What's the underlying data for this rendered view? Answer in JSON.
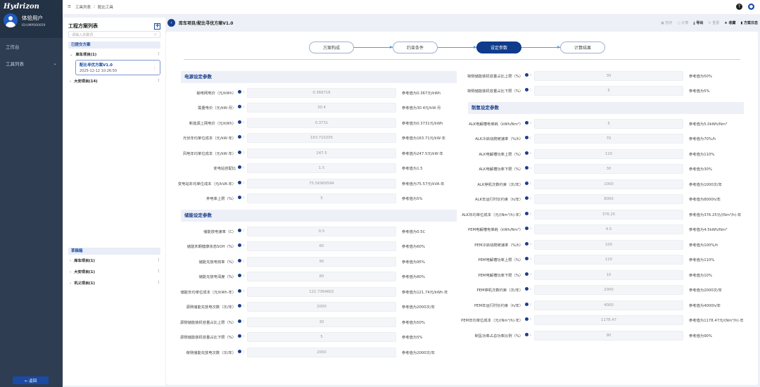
{
  "app": {
    "logo": "Hydrizon",
    "user_name": "体验用户",
    "user_id": "ID:UMP000059",
    "nav": [
      {
        "label": "工作台"
      },
      {
        "label": "工具列表"
      }
    ],
    "back_label": "← 返回"
  },
  "breadcrumb": [
    "工具列表",
    "配比工具"
  ],
  "left_panel": {
    "title": "工程方案列表",
    "search_placeholder": "请输入关键词",
    "submitted_label": "已提交方案",
    "submitted": [
      {
        "label": "库车项目(1)",
        "child": {
          "name": "配比寻优方案V1.0",
          "date": "2025-12-12 10:26:50"
        }
      },
      {
        "label": "大安项目(14)"
      }
    ],
    "drafts_label": "草稿箱",
    "drafts": [
      {
        "label": "库车项目(1)"
      },
      {
        "label": "大安项目(1)"
      },
      {
        "label": "巩义项目(1)"
      }
    ]
  },
  "main": {
    "title": "库车项目/配比寻优方案V1.0",
    "actions": [
      {
        "label": "暂存",
        "icon": "save-icon",
        "enabled": false
      },
      {
        "label": "计算",
        "icon": "calc-icon",
        "enabled": false
      },
      {
        "label": "导出",
        "icon": "export-icon",
        "enabled": true
      },
      {
        "label": "重置",
        "icon": "reset-icon",
        "enabled": false
      },
      {
        "label": "收藏",
        "icon": "star-icon",
        "enabled": true
      },
      {
        "label": "方案日志",
        "icon": "log-icon",
        "enabled": true
      }
    ],
    "steps": [
      {
        "label": "方案构成"
      },
      {
        "label": "约束条件"
      },
      {
        "label": "设定参数",
        "active": true
      },
      {
        "label": "计算结果"
      }
    ]
  },
  "left_column": [
    {
      "type": "header",
      "title": "电源设定参数"
    },
    {
      "label": "输电网电价（元/kWh）",
      "value": "0.366716",
      "ref": "参考值为0.367元/kWh"
    },
    {
      "label": "需量电价（元/kW·月）",
      "value": "30.4",
      "ref": "参考值为30.4元/kW·月"
    },
    {
      "label": "新能源上网电价（元/kWh）",
      "value": "0.3731",
      "ref": "参考值为0.3731元/kWh"
    },
    {
      "label": "光伏年均单位成本（元/kW·年）",
      "value": "163.710205",
      "ref": "参考值为163.71元/kW·年"
    },
    {
      "label": "风电年均单位成本（元/kW·年）",
      "value": "247.5",
      "ref": "参考值为247.5元/kW·年"
    },
    {
      "label": "变电站容配比",
      "value": "1.5",
      "ref": "参考值为1.5"
    },
    {
      "label": "变电站年均单位成本（元/kVA·年）",
      "value": "75.56969594",
      "ref": "参考值为75.57元/kVA·年"
    },
    {
      "label": "弃电率上限（%）",
      "value": "5",
      "ref": "参考值为5%"
    },
    {
      "type": "header",
      "title": "储能设定参数"
    },
    {
      "label": "储能放电速率（C）",
      "value": "0.5",
      "ref": "参考值为0.5C"
    },
    {
      "label": "储能末期健康状态SOH（%）",
      "value": "60",
      "ref": "参考值为60%"
    },
    {
      "label": "储能充放电效率（%）",
      "value": "95",
      "ref": "参考值为95%"
    },
    {
      "label": "储能充放电深度（%）",
      "value": "80",
      "ref": "参考值为80%"
    },
    {
      "label": "储能年均单位成本（元/kWh·年）",
      "value": "121.7364602",
      "ref": "参考值为121.74元/kWh·年"
    },
    {
      "label": "源侧储能充放电次数（次/年）",
      "value": "2000",
      "ref": "参考值为2000次/年"
    },
    {
      "label": "源侧储能装机容量占比上限（%）",
      "value": "30",
      "ref": "参考值为50%"
    },
    {
      "label": "源侧储能装机容量占比下限（%）",
      "value": "5",
      "ref": "参考值为5%"
    },
    {
      "label": "荷侧储能充放电次数（次/年）",
      "value": "2000",
      "ref": "参考值为2000次/年"
    }
  ],
  "right_column": [
    {
      "label": "荷侧储能装机容量占比上限（%）",
      "value": "30",
      "ref": "参考值为50%"
    },
    {
      "label": "荷侧储能装机容量占比下限（%）",
      "value": "5",
      "ref": "参考值为5%"
    },
    {
      "type": "header",
      "title": "制氢设定参数"
    },
    {
      "label": "ALK电解槽电单耗（kWh/Nm³）",
      "value": "5",
      "ref": "参考值为5.0kWh/Nm³"
    },
    {
      "label": "ALK冷启动爬坡速率（%/h）",
      "value": "70",
      "ref": "参考值为70%/h"
    },
    {
      "label": "ALK电解槽功率上限（%）",
      "value": "110",
      "ref": "参考值为110%"
    },
    {
      "label": "ALK电解槽功率下限（%）",
      "value": "30",
      "ref": "参考值为30%"
    },
    {
      "label": "ALK停机次数约束（次/年）",
      "value": "1000",
      "ref": "参考值为1000次/年"
    },
    {
      "label": "ALK年运行时长约束（h/年）",
      "value": "8000",
      "ref": "参考值为8000h/年"
    },
    {
      "label": "ALK年均单位成本（元/(Nm³/h)·年）",
      "value": "376.25",
      "ref": "参考值为376.25元/(Nm³/h)·年"
    },
    {
      "label": "PEM电解槽电单耗（kWh/Nm³）",
      "value": "4.5",
      "ref": "参考值为4.5kWh/Nm³"
    },
    {
      "label": "PEM冷启动爬坡速率（%/h）",
      "value": "100",
      "ref": "参考值为100%/h"
    },
    {
      "label": "PEM电解槽功率上限（%）",
      "value": "110",
      "ref": "参考值为110%"
    },
    {
      "label": "PEM电解槽功率下限（%）",
      "value": "10",
      "ref": "参考值为10%"
    },
    {
      "label": "PEM停机次数约束（次/年）",
      "value": "2000",
      "ref": "参考值为2000次/年"
    },
    {
      "label": "PEM年运行时长约束（h/年）",
      "value": "4000",
      "ref": "参考值为4000h/年"
    },
    {
      "label": "PEM年均单位成本（元/(Nm³/h)·年）",
      "value": "1178.47",
      "ref": "参考值为1178.47元/(Nm³/h)·年"
    },
    {
      "label": "制氢功率占总功率比例（%）",
      "value": "90",
      "ref": "参考值为90%"
    }
  ]
}
